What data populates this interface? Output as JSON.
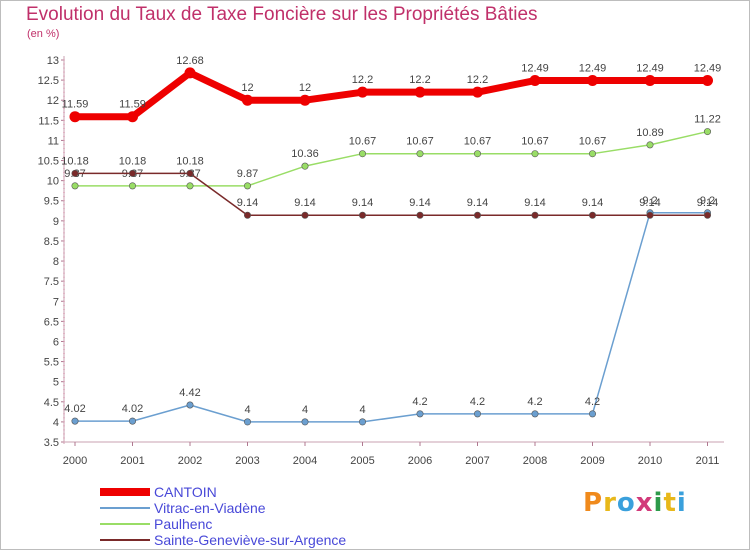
{
  "title": "Evolution du Taux de Taxe Foncière sur les Propriétés Bâties",
  "unit_label": "(en %)",
  "logo_text": "Proxiti",
  "chart_data": {
    "type": "line",
    "title": "Evolution du Taux de Taxe Foncière sur les Propriétés Bâties",
    "ylabel": "(en %)",
    "xlabel": "",
    "categories": [
      "2000",
      "2001",
      "2002",
      "2003",
      "2004",
      "2005",
      "2006",
      "2007",
      "2008",
      "2009",
      "2010",
      "2011"
    ],
    "ylim": [
      3.5,
      13
    ],
    "yticks": [
      "3.5",
      "4",
      "4.5",
      "5",
      "5.5",
      "6",
      "6.5",
      "7",
      "7.5",
      "8",
      "8.5",
      "9",
      "9.5",
      "10",
      "10.5",
      "11",
      "11.5",
      "12",
      "12.5",
      "13"
    ],
    "grid": false,
    "legend_position": "bottom-left",
    "series": [
      {
        "name": "CANTOIN",
        "color": "#ee0000",
        "values": [
          11.59,
          11.59,
          12.68,
          12,
          12,
          12.2,
          12.2,
          12.2,
          12.49,
          12.49,
          12.49,
          12.49
        ],
        "labels": [
          "11.59",
          "11.59",
          "12.68",
          "12",
          "12",
          "12.2",
          "12.2",
          "12.2",
          "12.49",
          "12.49",
          "12.49",
          "12.49"
        ]
      },
      {
        "name": "Vitrac-en-Viadène",
        "color": "#6b9fd0",
        "values": [
          4.02,
          4.02,
          4.42,
          4,
          4,
          4,
          4.2,
          4.2,
          4.2,
          4.2,
          9.2,
          9.2
        ],
        "labels": [
          "4.02",
          "4.02",
          "4.42",
          "4",
          "4",
          "4",
          "4.2",
          "4.2",
          "4.2",
          "4.2",
          "9.2",
          "9.2"
        ]
      },
      {
        "name": "Paulhenc",
        "color": "#99dd66",
        "values": [
          9.87,
          9.87,
          9.87,
          9.87,
          10.36,
          10.67,
          10.67,
          10.67,
          10.67,
          10.67,
          10.89,
          11.22
        ],
        "labels": [
          "9.87",
          "9.87",
          "9.87",
          "9.87",
          "10.36",
          "10.67",
          "10.67",
          "10.67",
          "10.67",
          "10.67",
          "10.89",
          "11.22"
        ]
      },
      {
        "name": "Sainte-Geneviève-sur-Argence",
        "color": "#7a2a2a",
        "values": [
          10.18,
          10.18,
          10.18,
          9.14,
          9.14,
          9.14,
          9.14,
          9.14,
          9.14,
          9.14,
          9.14,
          9.14
        ],
        "labels": [
          "10.18",
          "10.18",
          "10.18",
          "9.14",
          "9.14",
          "9.14",
          "9.14",
          "9.14",
          "9.14",
          "9.14",
          "9.14",
          "9.14"
        ]
      }
    ]
  }
}
